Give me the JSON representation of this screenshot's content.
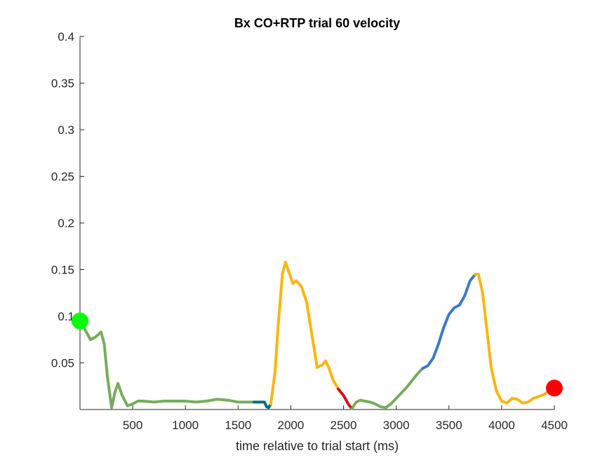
{
  "chart_data": {
    "type": "line",
    "title": "Bx  CO+RTP trial 60 velocity",
    "xlabel": "time relative to trial start (ms)",
    "ylabel": "",
    "xlim": [
      0,
      4500
    ],
    "ylim": [
      0,
      0.4
    ],
    "x_ticks": [
      500,
      1000,
      1500,
      2000,
      2500,
      3000,
      3500,
      4000,
      4500
    ],
    "y_ticks": [
      0.05,
      0.1,
      0.15,
      0.2,
      0.25,
      0.3,
      0.35,
      0.4
    ],
    "y_tick_labels": [
      "0.05",
      "0.1",
      "0.15",
      "0.2",
      "0.25",
      "0.3",
      "0.35",
      "0.4"
    ],
    "grid": false,
    "legend": "none",
    "series": [
      {
        "color": "#77ac5d",
        "x": [
          0,
          50,
          100,
          150,
          200,
          230,
          260,
          300,
          330,
          360,
          400,
          450,
          500,
          550,
          600,
          700,
          800,
          900,
          1000,
          1100,
          1200,
          1300,
          1400,
          1500,
          1600,
          1650
        ],
        "y": [
          0.095,
          0.085,
          0.075,
          0.078,
          0.083,
          0.07,
          0.035,
          0.002,
          0.018,
          0.028,
          0.015,
          0.004,
          0.006,
          0.009,
          0.009,
          0.008,
          0.009,
          0.009,
          0.009,
          0.008,
          0.009,
          0.011,
          0.01,
          0.008,
          0.008,
          0.008
        ]
      },
      {
        "color": "#006e7f",
        "x": [
          1650,
          1700,
          1750,
          1770,
          1790,
          1810
        ],
        "y": [
          0.008,
          0.008,
          0.008,
          0.003,
          0.002,
          0.006
        ]
      },
      {
        "color": "#fbb514",
        "x": [
          1810,
          1850,
          1880,
          1920,
          1950,
          1980,
          2020,
          2050,
          2100,
          2150,
          2200,
          2250,
          2300,
          2330,
          2360,
          2400,
          2450
        ],
        "y": [
          0.006,
          0.04,
          0.09,
          0.145,
          0.158,
          0.148,
          0.135,
          0.138,
          0.132,
          0.115,
          0.08,
          0.045,
          0.048,
          0.052,
          0.045,
          0.032,
          0.022
        ]
      },
      {
        "color": "#d1131d",
        "x": [
          2450,
          2500,
          2550,
          2580
        ],
        "y": [
          0.022,
          0.015,
          0.005,
          0.001
        ]
      },
      {
        "color": "#77ac5d",
        "x": [
          2580,
          2620,
          2660,
          2700,
          2750,
          2800,
          2850,
          2900,
          2950,
          3000,
          3050,
          3100,
          3150,
          3200,
          3250
        ],
        "y": [
          0.001,
          0.008,
          0.01,
          0.009,
          0.008,
          0.006,
          0.003,
          0.002,
          0.006,
          0.012,
          0.018,
          0.024,
          0.031,
          0.038,
          0.044
        ]
      },
      {
        "color": "#3c7ac3",
        "x": [
          3250,
          3300,
          3350,
          3400,
          3450,
          3500,
          3550,
          3600,
          3650,
          3700,
          3750
        ],
        "y": [
          0.044,
          0.047,
          0.055,
          0.07,
          0.088,
          0.102,
          0.109,
          0.112,
          0.122,
          0.138,
          0.145
        ]
      },
      {
        "color": "#fbb514",
        "x": [
          3750,
          3780,
          3820,
          3860,
          3900,
          3950,
          4000,
          4050,
          4100,
          4150,
          4200,
          4250,
          4300,
          4350,
          4400,
          4450,
          4500
        ],
        "y": [
          0.145,
          0.145,
          0.125,
          0.085,
          0.045,
          0.02,
          0.009,
          0.007,
          0.012,
          0.011,
          0.007,
          0.008,
          0.012,
          0.014,
          0.016,
          0.02,
          0.023
        ]
      }
    ],
    "markers": [
      {
        "x": 0,
        "y": 0.095,
        "color": "#00ff00"
      },
      {
        "x": 4500,
        "y": 0.023,
        "color": "#ff0000"
      }
    ]
  }
}
